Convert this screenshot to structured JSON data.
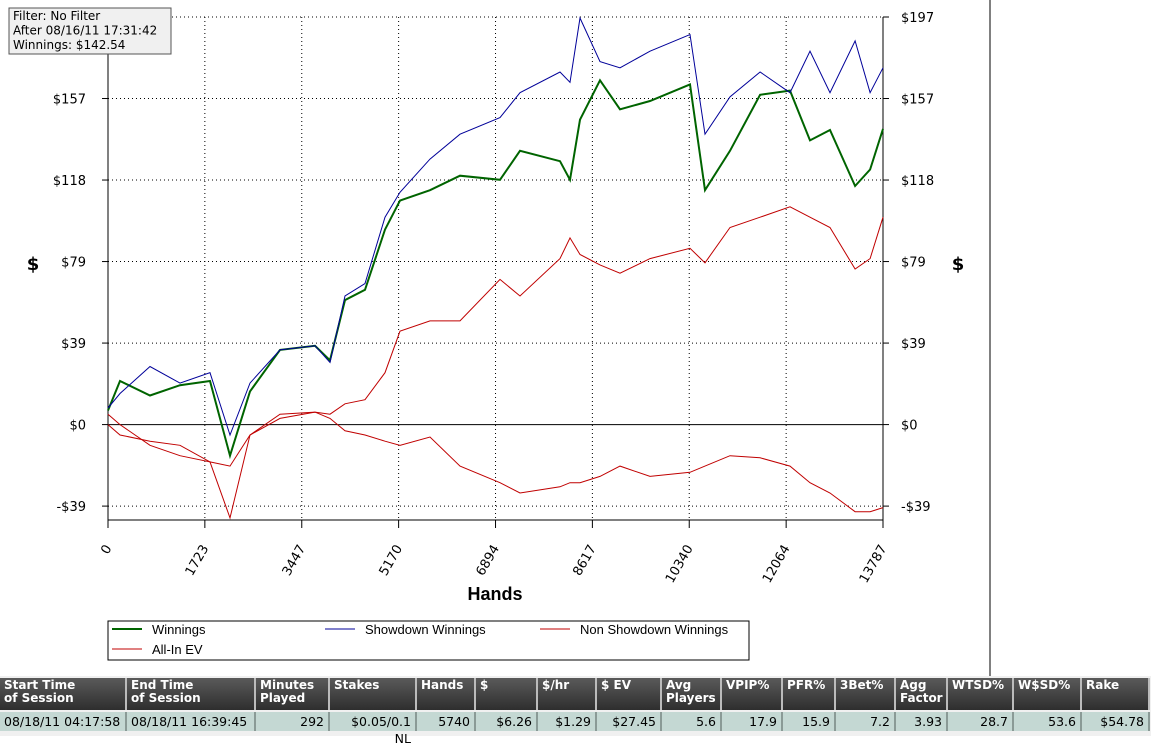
{
  "chart_data": {
    "type": "line",
    "annotation": [
      "Filter: No Filter",
      "After 08/16/11 17:31:42",
      "Winnings: $142.54"
    ],
    "x_label": "Hands",
    "y_label": "$",
    "x": [
      0,
      213,
      747,
      1281,
      1815,
      2170,
      2526,
      3059,
      3683,
      3949,
      4216,
      4572,
      4928,
      5195,
      5728,
      6262,
      6974,
      7330,
      8041,
      8219,
      8397,
      8753,
      9109,
      9642,
      10354,
      10621,
      11066,
      11600,
      12133,
      12489,
      12845,
      13290,
      13557,
      13787
    ],
    "series": [
      {
        "name": "Winnings",
        "color": "#006400",
        "width": 2,
        "values": [
          6.8,
          21,
          14,
          19,
          21,
          -15,
          16,
          36,
          38,
          31,
          60,
          65,
          94,
          108,
          113,
          120,
          118,
          132,
          127,
          118,
          147,
          166,
          152,
          156,
          164,
          113,
          132,
          159,
          161,
          137,
          142,
          115,
          123,
          142.54
        ]
      },
      {
        "name": "Showdown Winnings",
        "color": "#000099",
        "width": 1,
        "values": [
          8,
          15,
          28,
          20,
          25,
          -5,
          20,
          36,
          38,
          30,
          62,
          68,
          100,
          112,
          128,
          140,
          148,
          160,
          170,
          165,
          196,
          175,
          172,
          180,
          188,
          140,
          158,
          170,
          160,
          180,
          160,
          185,
          160,
          172
        ]
      },
      {
        "name": "Non Showdown Winnings",
        "color": "#c00000",
        "width": 1,
        "values": [
          0,
          -5,
          -8,
          -10,
          -18,
          -20,
          -5,
          3,
          6,
          3,
          -3,
          -5,
          -8,
          -10,
          -6,
          -20,
          -28,
          -33,
          -30,
          -28,
          -28,
          -25,
          -20,
          -25,
          -23,
          -20,
          -15,
          -16,
          -20,
          -28,
          -33,
          -42,
          -42,
          -40
        ]
      },
      {
        "name": "All-In EV",
        "color": "#c00000",
        "width": 1,
        "values": [
          5,
          0,
          -10,
          -15,
          -18,
          -45,
          -5,
          5,
          6,
          5,
          10,
          12,
          25,
          45,
          50,
          50,
          70,
          62,
          80,
          90,
          82,
          77,
          73,
          80,
          85,
          78,
          95,
          100,
          105,
          100,
          95,
          75,
          80,
          100
        ]
      }
    ],
    "xlim": [
      0,
      13787
    ],
    "xticks": [
      0,
      1723,
      3447,
      5170,
      6894,
      8617,
      10340,
      12064,
      13787
    ],
    "ylim": [
      -46,
      196.5
    ],
    "yticks": [
      {
        "value": 196.5,
        "label": "$197"
      },
      {
        "value": 157.2,
        "label": "$157"
      },
      {
        "value": 117.9,
        "label": "$118"
      },
      {
        "value": 78.6,
        "label": "$79"
      },
      {
        "value": 39.3,
        "label": "$39"
      },
      {
        "value": 0,
        "label": "$0"
      },
      {
        "value": -39.3,
        "label": "-$39"
      }
    ],
    "grid": true
  },
  "table": {
    "headers": [
      "Start Time\nof Session",
      "End Time\nof Session",
      "Minutes\nPlayed",
      "Stakes",
      "Hands",
      "$",
      "$/hr",
      "$ EV",
      "Avg\nPlayers",
      "VPIP%",
      "PFR%",
      "3Bet%",
      "Agg\nFactor",
      "WTSD%",
      "W$SD%",
      "Rake"
    ],
    "rows": [
      [
        "08/18/11 04:17:58",
        "08/18/11 16:39:45",
        "292",
        "$0.05/0.1 NL",
        "5740",
        "$6.26",
        "$1.29",
        "$27.45",
        "5.6",
        "17.9",
        "15.9",
        "7.2",
        "3.93",
        "28.7",
        "53.6",
        "$54.78"
      ]
    ]
  }
}
